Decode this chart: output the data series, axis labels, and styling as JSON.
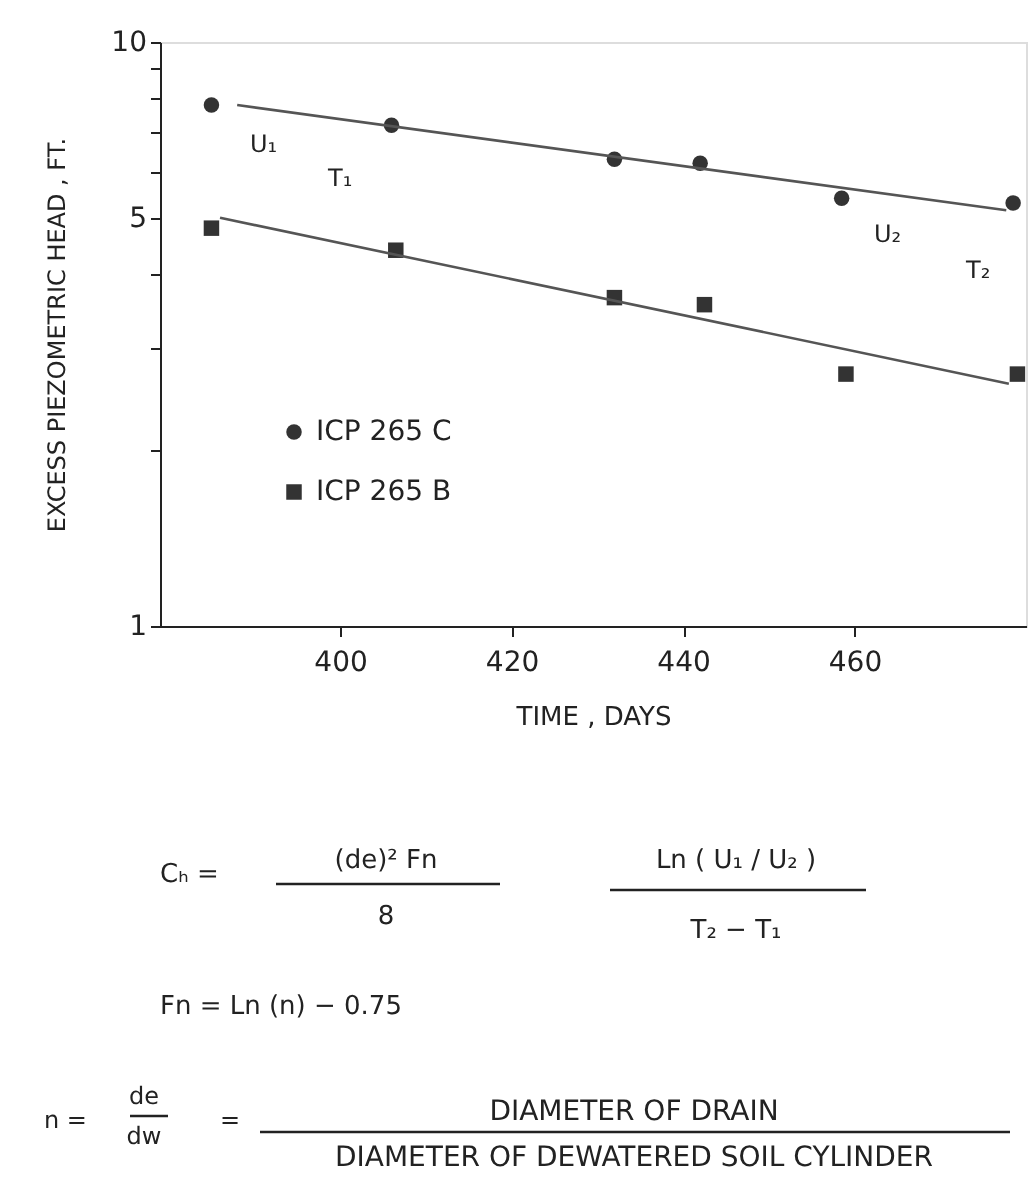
{
  "chart_data": {
    "type": "scatter",
    "xlabel": "TIME , DAYS",
    "ylabel": "EXCESS PIEZOMETRIC HEAD , FT.",
    "xlim": [
      379,
      480
    ],
    "xticks": [
      400,
      420,
      440,
      460
    ],
    "ylim": [
      1,
      10
    ],
    "yticks": [
      1,
      {
        "value": 2,
        "label": null
      },
      {
        "value": 3,
        "label": null
      },
      {
        "value": 4,
        "label": null
      },
      5,
      {
        "value": 6,
        "label": null
      },
      {
        "value": 7,
        "label": null
      },
      {
        "value": 8,
        "label": null
      },
      {
        "value": 9,
        "label": null
      },
      10
    ],
    "log": "y",
    "grid": false,
    "legend": "bottom left",
    "series": [
      {
        "name": "ICP 265 C",
        "marker": "circle",
        "color": "#333333",
        "x": [
          385,
          406,
          432,
          442,
          458.5,
          478.5
        ],
        "values": [
          7.8,
          7.2,
          6.3,
          6.2,
          5.4,
          5.3
        ]
      },
      {
        "name": "ICP 265 B",
        "marker": "square",
        "color": "#333333",
        "x": [
          385,
          406.5,
          432,
          442.5,
          459,
          479
        ],
        "values": [
          4.8,
          4.4,
          3.65,
          3.55,
          2.7,
          2.7
        ]
      },
      {
        "type": "line",
        "line_style": "solid",
        "color": "#555555",
        "x": [
          388,
          477.7
        ],
        "values": [
          7.8,
          5.15
        ]
      },
      {
        "type": "line",
        "line_style": "solid",
        "color": "#555555",
        "x": [
          386,
          478
        ],
        "values": [
          5.0,
          2.6
        ]
      }
    ],
    "annotations": [
      "U₁",
      "T₁",
      "U₂",
      "T₂",
      "Cₕ =",
      "(de)²  Fn",
      "8",
      "Ln ( U₁ / U₂ )",
      "T₂ − T₁",
      "Fn = Ln (n) − 0.75",
      "n =",
      "de",
      "dw",
      "=",
      "DIAMETER OF DRAIN",
      "DIAMETER OF DEWATERED SOIL CYLINDER"
    ]
  }
}
